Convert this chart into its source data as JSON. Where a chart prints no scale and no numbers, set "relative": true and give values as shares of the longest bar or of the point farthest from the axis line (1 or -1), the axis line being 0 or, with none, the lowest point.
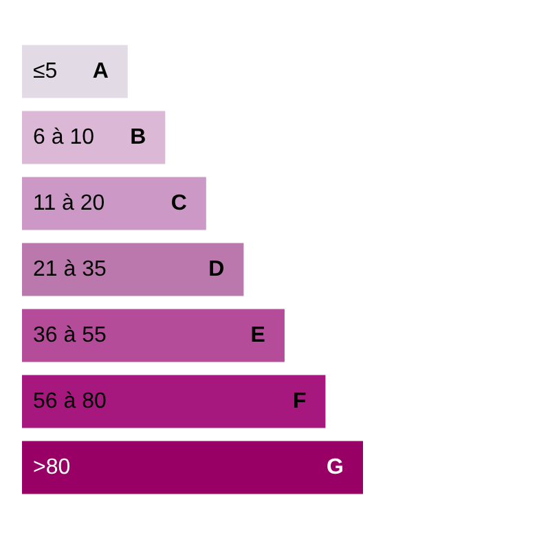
{
  "chart_data": {
    "type": "bar",
    "orientation": "horizontal",
    "relative": true,
    "categories": [
      "≤5",
      "6 à 10",
      "11 à 20",
      "21 à 35",
      "36 à 55",
      "56 à 80",
      ">80"
    ],
    "values": [
      0.31,
      0.42,
      0.54,
      0.65,
      0.77,
      0.89,
      1
    ],
    "colors": [
      "#e2dbe6",
      "#dab8d6",
      "#cc98c6",
      "#bb78ac",
      "#b54c9a",
      "#a7187e",
      "#990066"
    ],
    "annotations": [
      "A",
      "B",
      "C",
      "D",
      "E",
      "F",
      "G"
    ]
  }
}
